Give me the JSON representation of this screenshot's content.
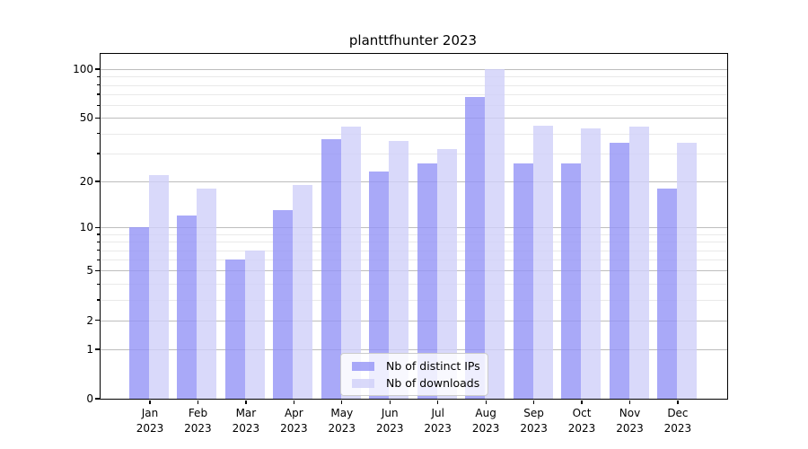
{
  "chart_data": {
    "type": "bar",
    "title": "planttfhunter 2023",
    "categories": [
      "Jan",
      "Feb",
      "Mar",
      "Apr",
      "May",
      "Jun",
      "Jul",
      "Aug",
      "Sep",
      "Oct",
      "Nov",
      "Dec"
    ],
    "category_year": "2023",
    "series": [
      {
        "name": "Nb of distinct IPs",
        "color": "#9494f6",
        "values": [
          10,
          12,
          6,
          13,
          37,
          23,
          26,
          67,
          26,
          26,
          35,
          18
        ]
      },
      {
        "name": "Nb of downloads",
        "color": "#d0d0f9",
        "values": [
          22,
          18,
          7,
          19,
          44,
          36,
          32,
          100,
          45,
          43,
          44,
          35
        ]
      }
    ],
    "bar_alpha": 0.8,
    "yscale": "log1p",
    "ylim": [
      0,
      124
    ],
    "yticks_major": [
      0,
      1,
      2,
      5,
      10,
      20,
      50,
      100
    ],
    "yticks_minor": [
      3,
      4,
      6,
      7,
      8,
      9,
      30,
      40,
      60,
      70,
      80,
      90
    ],
    "grid": true,
    "legend_position": "lower center",
    "legend_entries": [
      "Nb of distinct IPs",
      "Nb of downloads"
    ],
    "colors": {
      "major_grid": "#bdbdbd",
      "minor_grid": "#e9e9e9",
      "spine": "#000000",
      "legend_border": "#cccccc",
      "legend_bg": "rgba(255,255,255,0.8)",
      "text": "#000000"
    }
  }
}
